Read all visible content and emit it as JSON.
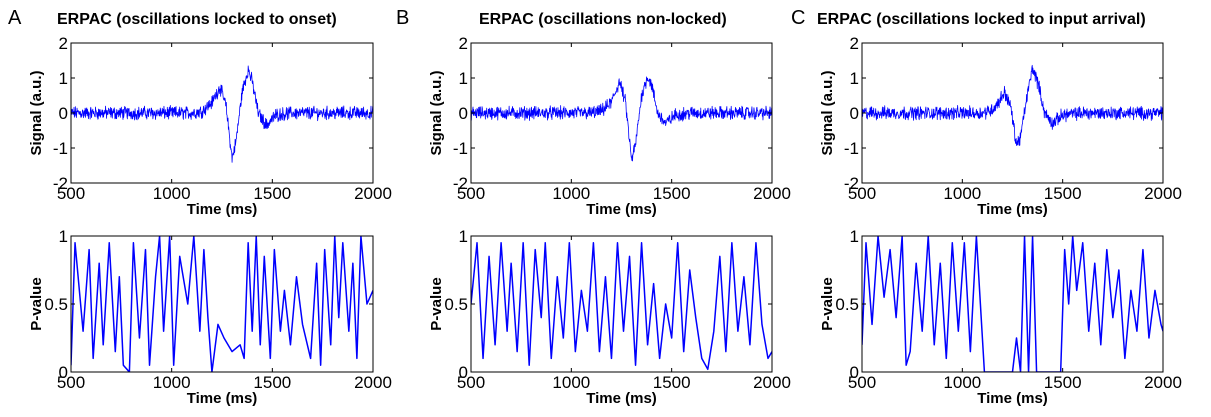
{
  "figure": {
    "panels": [
      {
        "letter": "A",
        "title": "ERPAC (oscillations locked to onset)"
      },
      {
        "letter": "B",
        "title": "ERPAC (oscillations non-locked)"
      },
      {
        "letter": "C",
        "title": "ERPAC (oscillations locked to input arrival)"
      }
    ]
  },
  "chart_data": [
    {
      "type": "line",
      "panel": "A",
      "role": "signal",
      "title": "ERPAC (oscillations locked to onset)",
      "xlabel": "Time (ms)",
      "ylabel": "Signal (a.u.)",
      "xlim": [
        500,
        2000
      ],
      "ylim": [
        -2,
        2
      ],
      "xticks": [
        500,
        1000,
        1500,
        2000
      ],
      "yticks": [
        -2,
        -1,
        0,
        1,
        2
      ],
      "line_color": "#0000ff",
      "noise_amplitude": 0.15,
      "series": [
        {
          "x": [
            500,
            1100,
            1150,
            1200,
            1240,
            1270,
            1300,
            1320,
            1350,
            1380,
            1400,
            1430,
            1470,
            1520,
            1600,
            2000
          ],
          "values": [
            0,
            0,
            0.05,
            0.3,
            0.75,
            0.2,
            -1.3,
            -0.8,
            0.6,
            1.25,
            0.9,
            0,
            -0.35,
            -0.05,
            0,
            0
          ]
        }
      ]
    },
    {
      "type": "line",
      "panel": "A",
      "role": "p-value",
      "xlabel": "Time (ms)",
      "ylabel": "P-value",
      "xlim": [
        500,
        2000
      ],
      "ylim": [
        0,
        1
      ],
      "xticks": [
        500,
        1000,
        1500,
        2000
      ],
      "yticks": [
        0,
        0.5,
        1
      ],
      "line_color": "#0000ff",
      "series": [
        {
          "x": [
            500,
            520,
            560,
            590,
            610,
            640,
            660,
            690,
            720,
            740,
            760,
            790,
            810,
            840,
            870,
            890,
            920,
            940,
            960,
            990,
            1010,
            1040,
            1080,
            1110,
            1140,
            1160,
            1180,
            1200,
            1230,
            1260,
            1300,
            1340,
            1360,
            1380,
            1400,
            1420,
            1440,
            1460,
            1490,
            1510,
            1540,
            1560,
            1590,
            1620,
            1650,
            1690,
            1720,
            1740,
            1760,
            1790,
            1810,
            1830,
            1850,
            1880,
            1900,
            1920,
            1940,
            1970,
            2000
          ],
          "values": [
            0.05,
            0.95,
            0.3,
            0.9,
            0.1,
            0.8,
            0.2,
            0.95,
            0.15,
            0.7,
            0.05,
            0.0,
            0.95,
            0.25,
            0.9,
            0.05,
            0.7,
            1.0,
            0.3,
            1.0,
            0.05,
            0.85,
            0.5,
            1.0,
            0.3,
            0.9,
            0.4,
            0.0,
            0.35,
            0.25,
            0.15,
            0.2,
            0.1,
            0.95,
            0.3,
            1.0,
            0.2,
            0.85,
            0.1,
            0.9,
            0.3,
            0.6,
            0.2,
            0.7,
            0.35,
            0.1,
            0.8,
            0.05,
            0.9,
            0.2,
            1.0,
            0.4,
            0.95,
            0.3,
            0.8,
            0.1,
            1.0,
            0.5,
            0.6
          ]
        }
      ]
    },
    {
      "type": "line",
      "panel": "B",
      "role": "signal",
      "title": "ERPAC (oscillations non-locked)",
      "xlabel": "Time (ms)",
      "ylabel": "Signal (a.u.)",
      "xlim": [
        500,
        2000
      ],
      "ylim": [
        -2,
        2
      ],
      "xticks": [
        500,
        1000,
        1500,
        2000
      ],
      "yticks": [
        -2,
        -1,
        0,
        1,
        2
      ],
      "line_color": "#0000ff",
      "noise_amplitude": 0.15,
      "series": [
        {
          "x": [
            500,
            1100,
            1150,
            1200,
            1240,
            1270,
            1300,
            1320,
            1350,
            1380,
            1400,
            1430,
            1470,
            1520,
            1600,
            2000
          ],
          "values": [
            0,
            0,
            0.05,
            0.3,
            0.9,
            0.3,
            -1.35,
            -0.9,
            0.5,
            1.05,
            0.8,
            0,
            -0.3,
            -0.05,
            0,
            0
          ]
        }
      ]
    },
    {
      "type": "line",
      "panel": "B",
      "role": "p-value",
      "xlabel": "Time (ms)",
      "ylabel": "P-value",
      "xlim": [
        500,
        2000
      ],
      "ylim": [
        0,
        1
      ],
      "xticks": [
        500,
        1000,
        1500,
        2000
      ],
      "yticks": [
        0,
        0.5,
        1
      ],
      "line_color": "#0000ff",
      "series": [
        {
          "x": [
            500,
            530,
            560,
            590,
            620,
            650,
            680,
            700,
            730,
            760,
            790,
            820,
            850,
            870,
            900,
            930,
            960,
            990,
            1020,
            1050,
            1080,
            1110,
            1140,
            1170,
            1200,
            1230,
            1260,
            1290,
            1320,
            1350,
            1380,
            1410,
            1440,
            1470,
            1500,
            1530,
            1560,
            1590,
            1620,
            1650,
            1680,
            1710,
            1740,
            1770,
            1800,
            1830,
            1860,
            1890,
            1920,
            1950,
            1980,
            2000
          ],
          "values": [
            0.5,
            0.95,
            0.1,
            0.85,
            0.2,
            0.95,
            0.3,
            0.8,
            0.15,
            0.95,
            0.05,
            0.9,
            0.4,
            0.95,
            0.1,
            0.7,
            0.25,
            0.95,
            0.15,
            0.6,
            0.3,
            0.95,
            0.15,
            0.7,
            0.1,
            0.95,
            0.3,
            0.85,
            0.05,
            0.95,
            0.2,
            0.65,
            0.1,
            0.5,
            0.25,
            0.95,
            0.15,
            0.75,
            0.4,
            0.1,
            0.02,
            0.3,
            0.85,
            0.15,
            0.95,
            0.3,
            0.7,
            0.2,
            0.95,
            0.35,
            0.1,
            0.15
          ]
        }
      ]
    },
    {
      "type": "line",
      "panel": "C",
      "role": "signal",
      "title": "ERPAC (oscillations locked to input arrival)",
      "xlabel": "Time (ms)",
      "ylabel": "Signal (a.u.)",
      "xlim": [
        500,
        2000
      ],
      "ylim": [
        -2,
        2
      ],
      "xticks": [
        500,
        1000,
        1500,
        2000
      ],
      "yticks": [
        -2,
        -1,
        0,
        1,
        2
      ],
      "line_color": "#0000ff",
      "noise_amplitude": 0.15,
      "series": [
        {
          "x": [
            500,
            1100,
            1150,
            1180,
            1210,
            1240,
            1270,
            1290,
            1320,
            1350,
            1380,
            1410,
            1450,
            1500,
            1600,
            2000
          ],
          "values": [
            0,
            0,
            0.1,
            0.3,
            0.6,
            0.2,
            -0.9,
            -0.7,
            0.4,
            1.3,
            0.8,
            0,
            -0.3,
            -0.05,
            0,
            0
          ]
        }
      ]
    },
    {
      "type": "line",
      "panel": "C",
      "role": "p-value",
      "xlabel": "Time (ms)",
      "ylabel": "P-value",
      "xlim": [
        500,
        2000
      ],
      "ylim": [
        0,
        1
      ],
      "xticks": [
        500,
        1000,
        1500,
        2000
      ],
      "yticks": [
        0,
        0.5,
        1
      ],
      "line_color": "#0000ff",
      "series": [
        {
          "x": [
            500,
            520,
            550,
            580,
            610,
            640,
            670,
            700,
            720,
            740,
            770,
            800,
            830,
            860,
            890,
            920,
            950,
            980,
            1010,
            1040,
            1070,
            1090,
            1110,
            1250,
            1270,
            1290,
            1310,
            1330,
            1350,
            1370,
            1490,
            1510,
            1530,
            1550,
            1570,
            1600,
            1630,
            1660,
            1690,
            1720,
            1750,
            1780,
            1810,
            1840,
            1870,
            1900,
            1930,
            1960,
            1990,
            2000
          ],
          "values": [
            0.2,
            0.95,
            0.35,
            1.0,
            0.55,
            0.9,
            0.4,
            1.0,
            0.05,
            0.15,
            0.8,
            0.3,
            1.0,
            0.2,
            0.8,
            0.1,
            0.95,
            0.3,
            0.95,
            0.15,
            1.0,
            0.5,
            0.0,
            0.0,
            0.25,
            0.0,
            1.0,
            0.0,
            1.0,
            0.0,
            0.0,
            0.9,
            0.5,
            1.0,
            0.6,
            0.95,
            0.3,
            0.8,
            0.2,
            0.9,
            0.4,
            0.75,
            0.1,
            0.6,
            0.3,
            0.9,
            0.25,
            0.6,
            0.35,
            0.3
          ]
        }
      ]
    }
  ]
}
